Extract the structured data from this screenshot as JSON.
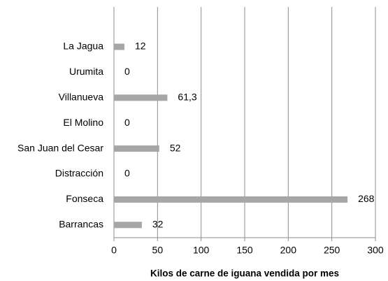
{
  "chart_data": {
    "type": "bar",
    "orientation": "horizontal",
    "x_label": "Kilos de carne de iguana vendida por mes",
    "categories": [
      "La Jagua",
      "Urumita",
      "Villanueva",
      "El Molino",
      "San Juan del Cesar",
      "Distracción",
      "Fonseca",
      "Barrancas"
    ],
    "values": [
      12,
      0,
      61.3,
      0,
      52,
      0,
      268,
      32
    ],
    "value_labels": [
      "12",
      "0",
      "61,3",
      "0",
      "52",
      "0",
      "268",
      "32"
    ],
    "color": "#a6a6a6",
    "xlim": [
      0,
      300
    ],
    "xticks": [
      0,
      50,
      100,
      150,
      200,
      250,
      300
    ],
    "grid": true
  }
}
